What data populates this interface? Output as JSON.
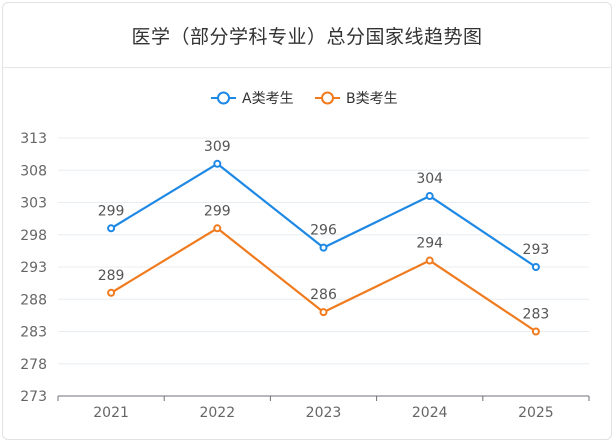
{
  "title": "医学（部分学科专业）总分国家线趋势图",
  "colors": {
    "seriesA": "#1e88e5",
    "seriesB": "#f07b1e",
    "grid": "#e8edf2",
    "axis": "#6e7079"
  },
  "chart_data": {
    "type": "line",
    "title": "医学（部分学科专业）总分国家线趋势图",
    "xlabel": "",
    "ylabel": "",
    "categories": [
      "2021",
      "2022",
      "2023",
      "2024",
      "2025"
    ],
    "series": [
      {
        "name": "A类考生",
        "values": [
          299,
          309,
          296,
          304,
          293
        ]
      },
      {
        "name": "B类考生",
        "values": [
          289,
          299,
          286,
          294,
          283
        ]
      }
    ],
    "ylim": [
      273,
      313
    ],
    "yticks": [
      273,
      278,
      283,
      288,
      293,
      298,
      303,
      308,
      313
    ],
    "grid": true,
    "legend": "top-center"
  }
}
